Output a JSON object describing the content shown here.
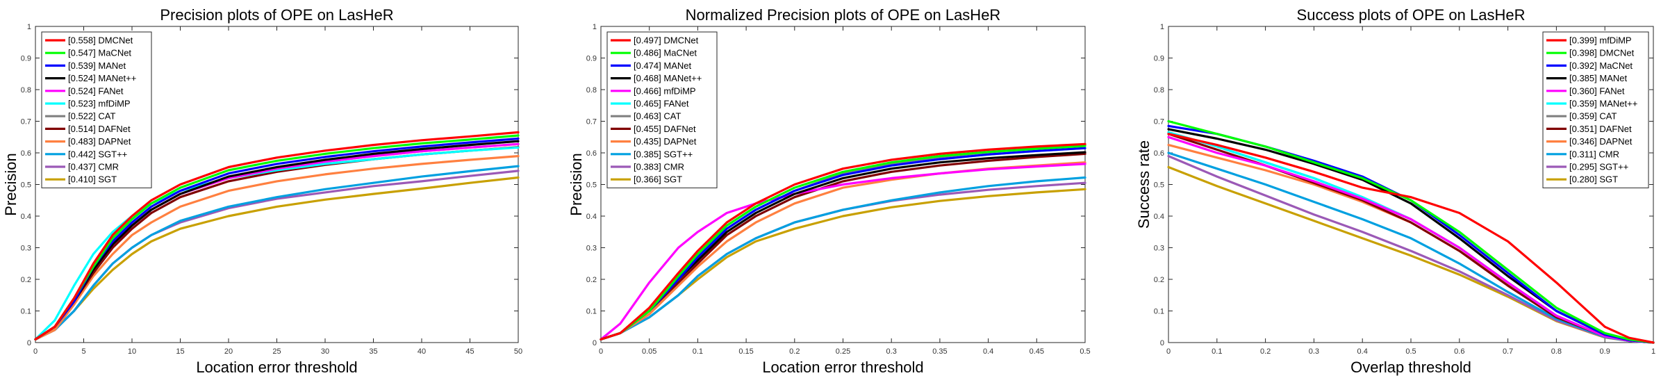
{
  "chart_data": [
    {
      "type": "line",
      "title": "Precision plots of OPE on LasHeR",
      "xlabel": "Location error threshold",
      "ylabel": "Precision",
      "xlim": [
        0,
        50
      ],
      "ylim": [
        0,
        1
      ],
      "xticks": [
        "0",
        "5",
        "10",
        "15",
        "20",
        "25",
        "30",
        "35",
        "40",
        "45",
        "50"
      ],
      "yticks": [
        "0",
        "0.1",
        "0.2",
        "0.3",
        "0.4",
        "0.5",
        "0.6",
        "0.7",
        "0.8",
        "0.9",
        "1"
      ],
      "legend_position": "top-left",
      "grid": false,
      "x": [
        0,
        2,
        4,
        6,
        8,
        10,
        12,
        15,
        20,
        25,
        30,
        35,
        40,
        45,
        50
      ],
      "series": [
        {
          "name": "[0.558] DMCNet",
          "color": "#ff0000",
          "values": [
            0.01,
            0.05,
            0.14,
            0.25,
            0.34,
            0.4,
            0.45,
            0.5,
            0.555,
            0.585,
            0.607,
            0.625,
            0.64,
            0.652,
            0.665
          ]
        },
        {
          "name": "[0.547] MaCNet",
          "color": "#00ff00",
          "values": [
            0.01,
            0.05,
            0.14,
            0.24,
            0.33,
            0.39,
            0.44,
            0.49,
            0.545,
            0.575,
            0.597,
            0.615,
            0.63,
            0.642,
            0.655
          ]
        },
        {
          "name": "[0.539] MANet",
          "color": "#0000ff",
          "values": [
            0.01,
            0.05,
            0.13,
            0.24,
            0.32,
            0.38,
            0.43,
            0.48,
            0.535,
            0.565,
            0.587,
            0.605,
            0.62,
            0.633,
            0.645
          ]
        },
        {
          "name": "[0.524] MANet++",
          "color": "#000000",
          "values": [
            0.01,
            0.05,
            0.13,
            0.23,
            0.31,
            0.37,
            0.42,
            0.47,
            0.525,
            0.555,
            0.578,
            0.597,
            0.612,
            0.625,
            0.637
          ]
        },
        {
          "name": "[0.524] FANet",
          "color": "#ff00ff",
          "values": [
            0.01,
            0.05,
            0.13,
            0.23,
            0.31,
            0.37,
            0.42,
            0.47,
            0.52,
            0.55,
            0.572,
            0.59,
            0.605,
            0.617,
            0.628
          ]
        },
        {
          "name": "[0.523] mfDiMP",
          "color": "#00ffff",
          "values": [
            0.01,
            0.07,
            0.18,
            0.28,
            0.35,
            0.4,
            0.44,
            0.48,
            0.52,
            0.545,
            0.565,
            0.58,
            0.595,
            0.607,
            0.617
          ]
        },
        {
          "name": "[0.522] CAT",
          "color": "#808080",
          "values": [
            0.01,
            0.05,
            0.13,
            0.23,
            0.31,
            0.37,
            0.42,
            0.47,
            0.52,
            0.55,
            0.572,
            0.59,
            0.605,
            0.617,
            0.628
          ]
        },
        {
          "name": "[0.514] DAFNet",
          "color": "#800000",
          "values": [
            0.01,
            0.05,
            0.13,
            0.22,
            0.3,
            0.36,
            0.41,
            0.46,
            0.51,
            0.54,
            0.562,
            0.58,
            0.595,
            0.607,
            0.618
          ]
        },
        {
          "name": "[0.483] DAPNet",
          "color": "#ff8040",
          "values": [
            0.01,
            0.04,
            0.12,
            0.21,
            0.28,
            0.34,
            0.38,
            0.43,
            0.48,
            0.51,
            0.532,
            0.55,
            0.565,
            0.578,
            0.59
          ]
        },
        {
          "name": "[0.442] SGT++",
          "color": "#00a0e0",
          "values": [
            0.01,
            0.04,
            0.1,
            0.18,
            0.25,
            0.3,
            0.34,
            0.385,
            0.43,
            0.46,
            0.485,
            0.505,
            0.525,
            0.542,
            0.558
          ]
        },
        {
          "name": "[0.437] CMR",
          "color": "#9b59b6",
          "values": [
            0.01,
            0.04,
            0.1,
            0.18,
            0.25,
            0.3,
            0.34,
            0.38,
            0.425,
            0.455,
            0.475,
            0.495,
            0.51,
            0.527,
            0.543
          ]
        },
        {
          "name": "[0.410] SGT",
          "color": "#c8a000",
          "values": [
            0.01,
            0.04,
            0.1,
            0.17,
            0.23,
            0.28,
            0.32,
            0.36,
            0.4,
            0.43,
            0.452,
            0.47,
            0.487,
            0.505,
            0.522
          ]
        }
      ]
    },
    {
      "type": "line",
      "title": "Normalized Precision plots of OPE on LasHeR",
      "xlabel": "Location error threshold",
      "ylabel": "Precision",
      "xlim": [
        0,
        0.5
      ],
      "ylim": [
        0,
        1
      ],
      "xticks": [
        "0",
        "0.05",
        "0.1",
        "0.15",
        "0.2",
        "0.25",
        "0.3",
        "0.35",
        "0.4",
        "0.45",
        "0.5"
      ],
      "yticks": [
        "0",
        "0.1",
        "0.2",
        "0.3",
        "0.4",
        "0.5",
        "0.6",
        "0.7",
        "0.8",
        "0.9",
        "1"
      ],
      "legend_position": "top-left",
      "grid": false,
      "x": [
        0,
        0.02,
        0.05,
        0.08,
        0.1,
        0.13,
        0.16,
        0.2,
        0.25,
        0.3,
        0.35,
        0.4,
        0.45,
        0.5
      ],
      "series": [
        {
          "name": "[0.497] DMCNet",
          "color": "#ff0000",
          "values": [
            0.01,
            0.03,
            0.11,
            0.22,
            0.29,
            0.38,
            0.44,
            0.5,
            0.55,
            0.578,
            0.597,
            0.61,
            0.62,
            0.628
          ]
        },
        {
          "name": "[0.486] MaCNet",
          "color": "#00ff00",
          "values": [
            0.01,
            0.03,
            0.1,
            0.21,
            0.28,
            0.37,
            0.43,
            0.49,
            0.54,
            0.57,
            0.59,
            0.603,
            0.613,
            0.622
          ]
        },
        {
          "name": "[0.474] MANet",
          "color": "#0000ff",
          "values": [
            0.01,
            0.03,
            0.1,
            0.2,
            0.27,
            0.36,
            0.42,
            0.48,
            0.53,
            0.56,
            0.58,
            0.595,
            0.606,
            0.615
          ]
        },
        {
          "name": "[0.468] MANet++",
          "color": "#000000",
          "values": [
            0.01,
            0.03,
            0.1,
            0.2,
            0.26,
            0.35,
            0.41,
            0.47,
            0.52,
            0.55,
            0.57,
            0.583,
            0.593,
            0.602
          ]
        },
        {
          "name": "[0.466] mfDiMP",
          "color": "#ff00ff",
          "values": [
            0.01,
            0.06,
            0.19,
            0.3,
            0.35,
            0.41,
            0.44,
            0.47,
            0.5,
            0.52,
            0.535,
            0.548,
            0.557,
            0.565
          ]
        },
        {
          "name": "[0.465] FANet",
          "color": "#00ffff",
          "values": [
            0.01,
            0.03,
            0.1,
            0.2,
            0.27,
            0.36,
            0.42,
            0.48,
            0.53,
            0.56,
            0.58,
            0.595,
            0.606,
            0.615
          ]
        },
        {
          "name": "[0.463] CAT",
          "color": "#808080",
          "values": [
            0.01,
            0.03,
            0.1,
            0.2,
            0.27,
            0.36,
            0.42,
            0.48,
            0.535,
            0.565,
            0.587,
            0.602,
            0.614,
            0.625
          ]
        },
        {
          "name": "[0.455] DAFNet",
          "color": "#800000",
          "values": [
            0.01,
            0.03,
            0.1,
            0.19,
            0.25,
            0.34,
            0.4,
            0.46,
            0.51,
            0.54,
            0.56,
            0.575,
            0.587,
            0.597
          ]
        },
        {
          "name": "[0.435] DAPNet",
          "color": "#ff8040",
          "values": [
            0.01,
            0.03,
            0.09,
            0.18,
            0.24,
            0.32,
            0.38,
            0.44,
            0.49,
            0.515,
            0.535,
            0.55,
            0.56,
            0.57
          ]
        },
        {
          "name": "[0.385] SGT++",
          "color": "#00a0e0",
          "values": [
            0.01,
            0.03,
            0.08,
            0.15,
            0.21,
            0.28,
            0.33,
            0.38,
            0.42,
            0.45,
            0.475,
            0.495,
            0.51,
            0.522
          ]
        },
        {
          "name": "[0.383] CMR",
          "color": "#9b59b6",
          "values": [
            0.01,
            0.03,
            0.08,
            0.15,
            0.21,
            0.28,
            0.33,
            0.38,
            0.42,
            0.448,
            0.468,
            0.483,
            0.495,
            0.505
          ]
        },
        {
          "name": "[0.366] SGT",
          "color": "#c8a000",
          "values": [
            0.01,
            0.03,
            0.08,
            0.15,
            0.2,
            0.27,
            0.32,
            0.36,
            0.4,
            0.428,
            0.448,
            0.463,
            0.475,
            0.485
          ]
        }
      ]
    },
    {
      "type": "line",
      "title": "Success plots of OPE on LasHeR",
      "xlabel": "Overlap threshold",
      "ylabel": "Success rate",
      "xlim": [
        0,
        1
      ],
      "ylim": [
        0,
        1
      ],
      "xticks": [
        "0",
        "0.1",
        "0.2",
        "0.3",
        "0.4",
        "0.5",
        "0.6",
        "0.7",
        "0.8",
        "0.9",
        "1"
      ],
      "yticks": [
        "0",
        "0.1",
        "0.2",
        "0.3",
        "0.4",
        "0.5",
        "0.6",
        "0.7",
        "0.8",
        "0.9",
        "1"
      ],
      "legend_position": "top-right",
      "grid": false,
      "x": [
        0,
        0.1,
        0.2,
        0.3,
        0.4,
        0.5,
        0.6,
        0.7,
        0.8,
        0.9,
        0.95,
        1.0
      ],
      "series": [
        {
          "name": "[0.399] mfDiMP",
          "color": "#ff0000",
          "values": [
            0.66,
            0.625,
            0.585,
            0.54,
            0.49,
            0.46,
            0.41,
            0.32,
            0.19,
            0.05,
            0.015,
            0.0
          ]
        },
        {
          "name": "[0.398] DMCNet",
          "color": "#00ff00",
          "values": [
            0.7,
            0.66,
            0.62,
            0.57,
            0.52,
            0.45,
            0.35,
            0.23,
            0.11,
            0.03,
            0.01,
            0.0
          ]
        },
        {
          "name": "[0.392] MaCNet",
          "color": "#0000ff",
          "values": [
            0.685,
            0.66,
            0.62,
            0.575,
            0.525,
            0.45,
            0.34,
            0.22,
            0.1,
            0.025,
            0.008,
            0.0
          ]
        },
        {
          "name": "[0.385] MANet",
          "color": "#000000",
          "values": [
            0.675,
            0.645,
            0.61,
            0.565,
            0.515,
            0.44,
            0.33,
            0.21,
            0.1,
            0.025,
            0.008,
            0.0
          ]
        },
        {
          "name": "[0.360] FANet",
          "color": "#ff00ff",
          "values": [
            0.65,
            0.6,
            0.56,
            0.51,
            0.455,
            0.39,
            0.3,
            0.19,
            0.085,
            0.02,
            0.006,
            0.0
          ]
        },
        {
          "name": "[0.359] MANet++",
          "color": "#00ffff",
          "values": [
            0.665,
            0.62,
            0.57,
            0.52,
            0.46,
            0.39,
            0.3,
            0.19,
            0.085,
            0.02,
            0.006,
            0.0
          ]
        },
        {
          "name": "[0.359] CAT",
          "color": "#808080",
          "values": [
            0.665,
            0.62,
            0.57,
            0.52,
            0.46,
            0.39,
            0.3,
            0.19,
            0.085,
            0.02,
            0.006,
            0.0
          ]
        },
        {
          "name": "[0.351] DAFNet",
          "color": "#800000",
          "values": [
            0.66,
            0.61,
            0.56,
            0.505,
            0.45,
            0.38,
            0.29,
            0.18,
            0.08,
            0.02,
            0.006,
            0.0
          ]
        },
        {
          "name": "[0.346] DAPNet",
          "color": "#ff8040",
          "values": [
            0.625,
            0.585,
            0.545,
            0.5,
            0.445,
            0.38,
            0.29,
            0.185,
            0.085,
            0.02,
            0.006,
            0.0
          ]
        },
        {
          "name": "[0.311] CMR",
          "color": "#00a0e0",
          "values": [
            0.6,
            0.55,
            0.5,
            0.445,
            0.39,
            0.33,
            0.25,
            0.16,
            0.075,
            0.018,
            0.005,
            0.0
          ]
        },
        {
          "name": "[0.295] SGT++",
          "color": "#9b59b6",
          "values": [
            0.59,
            0.525,
            0.465,
            0.405,
            0.35,
            0.29,
            0.225,
            0.15,
            0.07,
            0.017,
            0.005,
            0.0
          ]
        },
        {
          "name": "[0.280] SGT",
          "color": "#c8a000",
          "values": [
            0.555,
            0.495,
            0.44,
            0.385,
            0.33,
            0.275,
            0.215,
            0.145,
            0.068,
            0.016,
            0.005,
            0.0
          ]
        }
      ]
    }
  ]
}
